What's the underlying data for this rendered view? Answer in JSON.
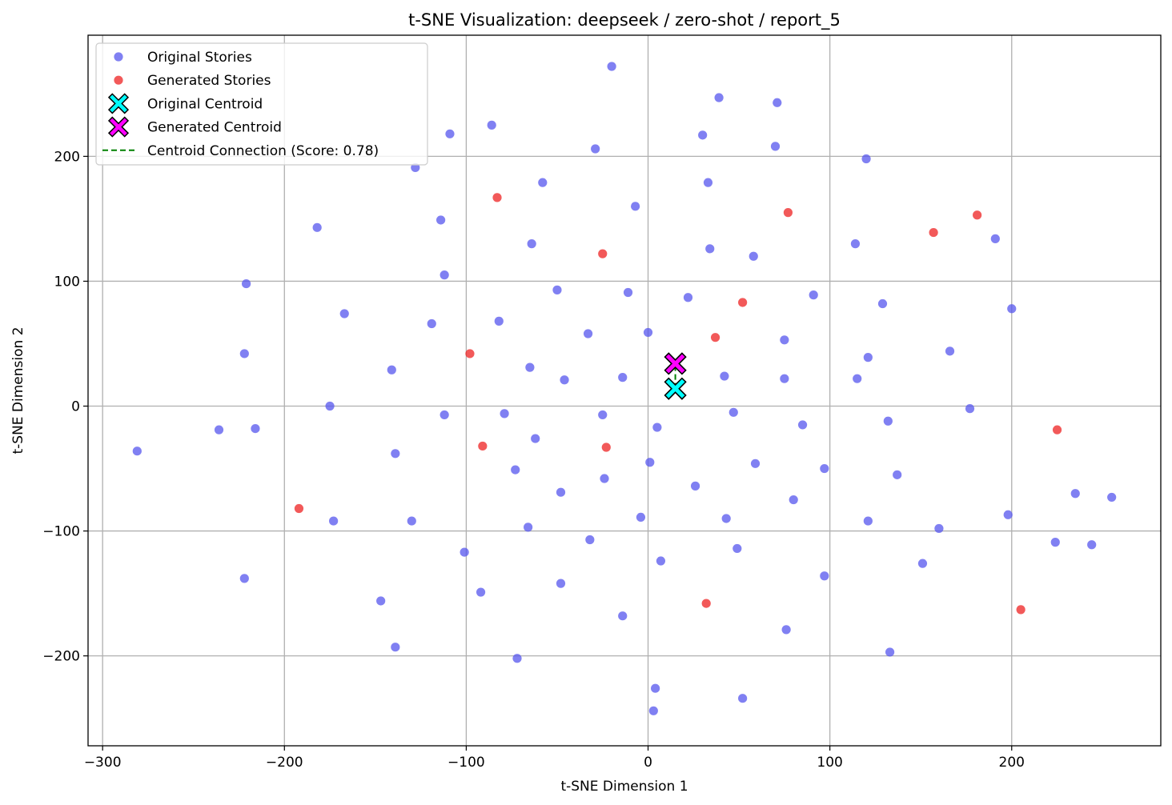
{
  "chart_data": {
    "type": "scatter",
    "title": "t-SNE Visualization: deepseek / zero-shot / report_5",
    "xlabel": "t-SNE Dimension 1",
    "ylabel": "t-SNE Dimension 2",
    "xlim": [
      -308,
      282
    ],
    "ylim": [
      -272,
      297
    ],
    "xticks": [
      -300,
      -200,
      -100,
      0,
      100,
      200
    ],
    "yticks": [
      -200,
      -100,
      0,
      100,
      200
    ],
    "xtick_labels": [
      "−300",
      "−200",
      "−100",
      "0",
      "100",
      "200"
    ],
    "ytick_labels": [
      "−200",
      "−100",
      "0",
      "100",
      "200"
    ],
    "grid": true,
    "legend_position": "top-left",
    "series": [
      {
        "name": "Original Stories",
        "color": "#5555ee",
        "points": [
          [
            -20,
            272
          ],
          [
            39,
            247
          ],
          [
            71,
            243
          ],
          [
            -86,
            225
          ],
          [
            -109,
            218
          ],
          [
            30,
            217
          ],
          [
            70,
            208
          ],
          [
            -29,
            206
          ],
          [
            -128,
            191
          ],
          [
            120,
            198
          ],
          [
            -58,
            179
          ],
          [
            33,
            179
          ],
          [
            -7,
            160
          ],
          [
            -182,
            143
          ],
          [
            -114,
            149
          ],
          [
            -64,
            130
          ],
          [
            34,
            126
          ],
          [
            58,
            120
          ],
          [
            114,
            130
          ],
          [
            191,
            134
          ],
          [
            -112,
            105
          ],
          [
            -221,
            98
          ],
          [
            -50,
            93
          ],
          [
            -11,
            91
          ],
          [
            22,
            87
          ],
          [
            91,
            89
          ],
          [
            129,
            82
          ],
          [
            200,
            78
          ],
          [
            -167,
            74
          ],
          [
            -82,
            68
          ],
          [
            -119,
            66
          ],
          [
            -33,
            58
          ],
          [
            0,
            59
          ],
          [
            75,
            53
          ],
          [
            -222,
            42
          ],
          [
            121,
            39
          ],
          [
            166,
            44
          ],
          [
            -141,
            29
          ],
          [
            -65,
            31
          ],
          [
            -46,
            21
          ],
          [
            -14,
            23
          ],
          [
            42,
            24
          ],
          [
            75,
            22
          ],
          [
            115,
            22
          ],
          [
            -175,
            0
          ],
          [
            -112,
            -7
          ],
          [
            -79,
            -6
          ],
          [
            -25,
            -7
          ],
          [
            47,
            -5
          ],
          [
            177,
            -2
          ],
          [
            -236,
            -19
          ],
          [
            -216,
            -18
          ],
          [
            5,
            -17
          ],
          [
            85,
            -15
          ],
          [
            132,
            -12
          ],
          [
            -281,
            -36
          ],
          [
            -139,
            -38
          ],
          [
            -62,
            -26
          ],
          [
            1,
            -45
          ],
          [
            59,
            -46
          ],
          [
            -73,
            -51
          ],
          [
            -24,
            -58
          ],
          [
            26,
            -64
          ],
          [
            97,
            -50
          ],
          [
            137,
            -55
          ],
          [
            -48,
            -69
          ],
          [
            80,
            -75
          ],
          [
            235,
            -70
          ],
          [
            255,
            -73
          ],
          [
            -173,
            -92
          ],
          [
            -130,
            -92
          ],
          [
            -4,
            -89
          ],
          [
            43,
            -90
          ],
          [
            121,
            -92
          ],
          [
            -66,
            -97
          ],
          [
            160,
            -98
          ],
          [
            198,
            -87
          ],
          [
            -101,
            -117
          ],
          [
            -32,
            -107
          ],
          [
            7,
            -124
          ],
          [
            49,
            -114
          ],
          [
            224,
            -109
          ],
          [
            244,
            -111
          ],
          [
            -222,
            -138
          ],
          [
            -147,
            -156
          ],
          [
            -92,
            -149
          ],
          [
            -48,
            -142
          ],
          [
            97,
            -136
          ],
          [
            151,
            -126
          ],
          [
            -14,
            -168
          ],
          [
            -139,
            -193
          ],
          [
            76,
            -179
          ],
          [
            -72,
            -202
          ],
          [
            133,
            -197
          ],
          [
            4,
            -226
          ],
          [
            52,
            -234
          ],
          [
            3,
            -244
          ]
        ]
      },
      {
        "name": "Generated Stories",
        "color": "#ee2222",
        "points": [
          [
            -83,
            167
          ],
          [
            77,
            155
          ],
          [
            181,
            153
          ],
          [
            157,
            139
          ],
          [
            -25,
            122
          ],
          [
            52,
            83
          ],
          [
            37,
            55
          ],
          [
            -98,
            42
          ],
          [
            -91,
            -32
          ],
          [
            -23,
            -33
          ],
          [
            225,
            -19
          ],
          [
            -192,
            -82
          ],
          [
            32,
            -158
          ],
          [
            205,
            -163
          ]
        ]
      }
    ],
    "centroids": [
      {
        "name": "Original Centroid",
        "color": "#00ffff",
        "x": 15,
        "y": 14
      },
      {
        "name": "Generated Centroid",
        "color": "#ff00ff",
        "x": 15,
        "y": 34
      }
    ],
    "connection": {
      "name": "Centroid Connection (Score: 0.78)",
      "color": "#008000"
    },
    "legend": [
      {
        "label": "Original Stories",
        "marker": "circle",
        "color": "#5555ee"
      },
      {
        "label": "Generated Stories",
        "marker": "circle",
        "color": "#ee2222"
      },
      {
        "label": "Original Centroid",
        "marker": "x-filled",
        "color": "#00ffff"
      },
      {
        "label": "Generated Centroid",
        "marker": "x-filled",
        "color": "#ff00ff"
      },
      {
        "label": "Centroid Connection (Score: 0.78)",
        "marker": "dashed-line",
        "color": "#008000"
      }
    ]
  }
}
